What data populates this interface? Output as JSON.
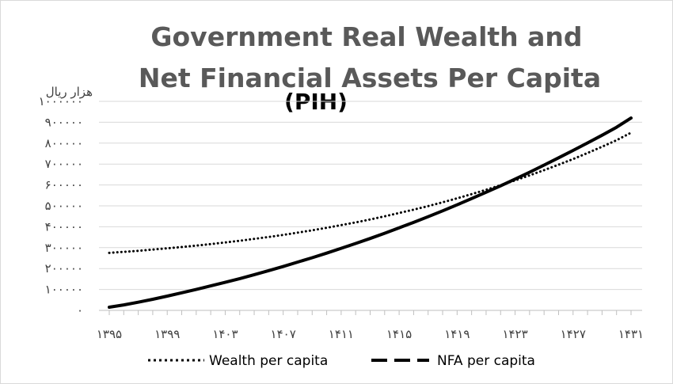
{
  "chart_data": {
    "type": "line",
    "title_lines": [
      "Government Real Wealth and",
      "Net Financial Assets Per Capita"
    ],
    "subtitle": "(PIH)",
    "ylabel": "هزار ریال",
    "xlabel": "",
    "x": [
      "۱۳۹۵",
      "۱۳۹۶",
      "۱۳۹۷",
      "۱۳۹۸",
      "۱۳۹۹",
      "۱۴۰۰",
      "۱۴۰۱",
      "۱۴۰۲",
      "۱۴۰۳",
      "۱۴۰۴",
      "۱۴۰۵",
      "۱۴۰۶",
      "۱۴۰۷",
      "۱۴۰۸",
      "۱۴۰۹",
      "۱۴۱۰",
      "۱۴۱۱",
      "۱۴۱۲",
      "۱۴۱۳",
      "۱۴۱۴",
      "۱۴۱۵",
      "۱۴۱۶",
      "۱۴۱۷",
      "۱۴۱۸",
      "۱۴۱۹",
      "۱۴۲۰",
      "۱۴۲۱",
      "۱۴۲۲",
      "۱۴۲۳",
      "۱۴۲۴",
      "۱۴۲۵",
      "۱۴۲۶",
      "۱۴۲۷",
      "۱۴۲۸",
      "۱۴۲۹",
      "۱۴۳۰",
      "۱۴۳۱"
    ],
    "x_tick_labels": [
      "۱۳۹۵",
      "۱۳۹۹",
      "۱۴۰۳",
      "۱۴۰۷",
      "۱۴۱۱",
      "۱۴۱۵",
      "۱۴۱۹",
      "۱۴۲۳",
      "۱۴۲۷",
      "۱۴۳۱"
    ],
    "y_tick_labels": [
      "۰",
      "۱۰۰۰۰۰",
      "۲۰۰۰۰۰",
      "۳۰۰۰۰۰",
      "۴۰۰۰۰۰",
      "۵۰۰۰۰۰",
      "۶۰۰۰۰۰",
      "۷۰۰۰۰۰",
      "۸۰۰۰۰۰",
      "۹۰۰۰۰۰",
      "۱۰۰۰۰۰۰"
    ],
    "ylim": [
      0,
      1000000
    ],
    "grid": true,
    "legend_position": "bottom",
    "series": [
      {
        "name": "Wealth per capita",
        "style": "dotted",
        "color": "#000000",
        "values": [
          275000,
          280000,
          285000,
          291000,
          297000,
          303000,
          310000,
          317000,
          325000,
          333000,
          342000,
          351000,
          361000,
          372000,
          383000,
          395000,
          408000,
          421000,
          435000,
          450000,
          466000,
          482000,
          499000,
          517000,
          536000,
          556000,
          577000,
          599000,
          622000,
          646000,
          671000,
          697000,
          724000,
          753000,
          783000,
          814000,
          850000
        ]
      },
      {
        "name": "NFA per capita",
        "style": "dashed",
        "color": "#000000",
        "values": [
          15000,
          26000,
          39000,
          53000,
          68000,
          84000,
          100000,
          117000,
          134000,
          152000,
          171000,
          190000,
          210000,
          231000,
          252000,
          274000,
          297000,
          320000,
          344000,
          369000,
          395000,
          421000,
          448000,
          476000,
          505000,
          535000,
          565000,
          596000,
          628000,
          661000,
          695000,
          730000,
          765000,
          801000,
          838000,
          876000,
          920000
        ]
      }
    ]
  }
}
